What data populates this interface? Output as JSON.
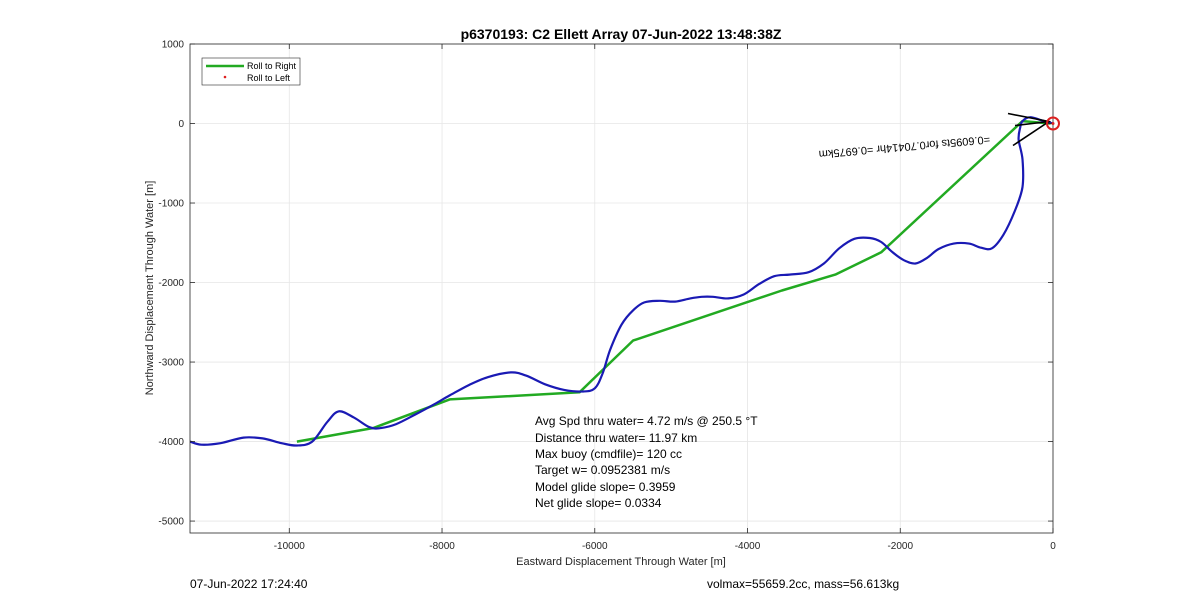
{
  "chart_data": {
    "type": "line",
    "title": "p6370193: C2 Ellett Array 07-Jun-2022 13:48:38Z",
    "xlabel": "Eastward Displacement Through Water [m]",
    "ylabel": "Northward Displacement Through Water [m]",
    "xlim": [
      -11300,
      0
    ],
    "ylim": [
      -5150,
      1000
    ],
    "xticks": [
      -10000,
      -8000,
      -6000,
      -4000,
      -2000,
      0
    ],
    "yticks": [
      1000,
      0,
      -1000,
      -2000,
      -3000,
      -4000,
      -5000
    ],
    "grid": true,
    "legend_position": "top-left",
    "series": [
      {
        "name": "Roll to Right",
        "color": "#22aa22",
        "x": [
          -9900,
          -8900,
          -7900,
          -6200,
          -5500,
          -3550,
          -2850,
          -2250,
          -400,
          -30
        ],
        "y": [
          -4000,
          -3830,
          -3470,
          -3380,
          -2730,
          -2100,
          -1900,
          -1620,
          30,
          0
        ]
      },
      {
        "name": "",
        "color": "#1a1ab4",
        "x": [
          -11300,
          -11150,
          -10900,
          -10600,
          -10350,
          -10100,
          -9900,
          -9700,
          -9500,
          -9350,
          -9150,
          -8950,
          -8800,
          -8600,
          -8350,
          -8100,
          -7900,
          -7650,
          -7400,
          -7100,
          -6900,
          -6650,
          -6400,
          -6150,
          -6000,
          -5900,
          -5800,
          -5650,
          -5500,
          -5350,
          -5150,
          -4950,
          -4750,
          -4600,
          -4450,
          -4250,
          -4050,
          -3850,
          -3650,
          -3450,
          -3200,
          -3000,
          -2800,
          -2600,
          -2400,
          -2250,
          -2100,
          -1950,
          -1800,
          -1650,
          -1500,
          -1300,
          -1100,
          -950,
          -800,
          -650,
          -500,
          -400,
          -400,
          -450,
          -430,
          -400,
          -300,
          -150,
          0
        ],
        "y": [
          -4000,
          -4040,
          -4020,
          -3950,
          -3960,
          -4020,
          -4050,
          -4000,
          -3750,
          -3620,
          -3700,
          -3820,
          -3830,
          -3780,
          -3660,
          -3530,
          -3420,
          -3290,
          -3190,
          -3130,
          -3170,
          -3280,
          -3350,
          -3370,
          -3330,
          -3150,
          -2850,
          -2530,
          -2350,
          -2250,
          -2230,
          -2240,
          -2200,
          -2180,
          -2180,
          -2200,
          -2150,
          -2020,
          -1920,
          -1900,
          -1870,
          -1760,
          -1570,
          -1450,
          -1440,
          -1490,
          -1620,
          -1720,
          -1760,
          -1690,
          -1580,
          -1510,
          -1510,
          -1560,
          -1570,
          -1400,
          -1100,
          -800,
          -450,
          -200,
          -50,
          30,
          80,
          40,
          0
        ]
      }
    ],
    "end_marker": {
      "name": "Roll to Left",
      "x": 0,
      "y": 0,
      "color": "#dd2020"
    },
    "annotation": {
      "text": "=0.6095ts for0.70414hr =0.6975km",
      "x": -1950,
      "y": -250,
      "mirrored": true
    },
    "stats": [
      "Avg Spd thru water=  4.72 m/s @ 250.5 °T",
      "Distance thru water= 11.97 km",
      "Max buoy (cmdfile)= 120 cc",
      "Target w= 0.0952381 m/s",
      "Model glide slope= 0.3959",
      "Net glide slope= 0.0334"
    ]
  },
  "footer": {
    "left": "07-Jun-2022 17:24:40",
    "right": "volmax=55659.2cc, mass=56.613kg"
  },
  "colors": {
    "grid": "#e6e6e6",
    "axis": "#262626"
  }
}
